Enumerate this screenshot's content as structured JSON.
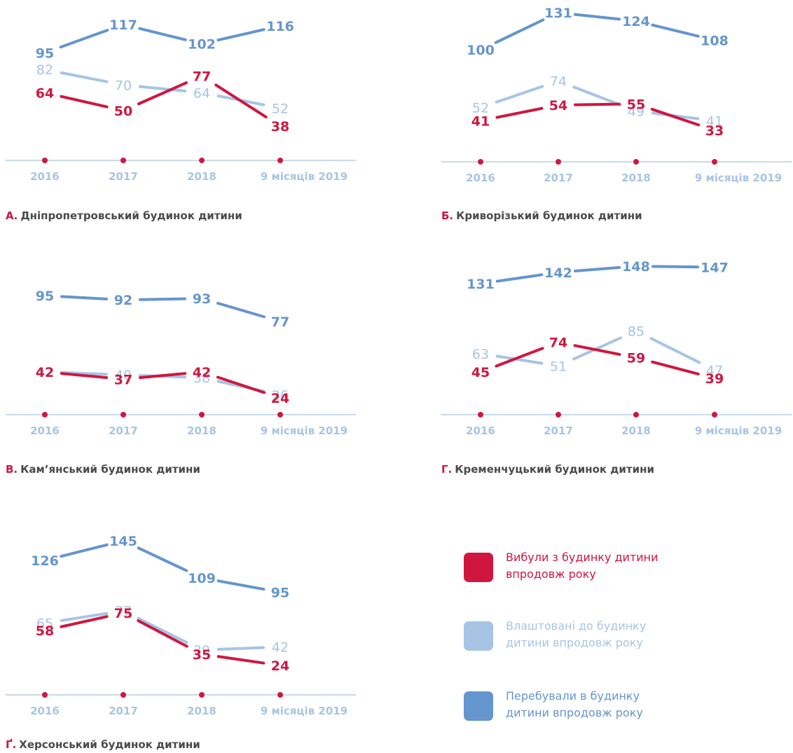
{
  "colors": {
    "left": "#d0163f",
    "placed": "#a7c4e5",
    "stayed": "#6495cd",
    "axis": "#a7c4e5",
    "axis_text": "#a7c4e5",
    "caption_text": "#4a4a4a",
    "caption_letter": "#d0163f"
  },
  "legend": [
    {
      "key": "left",
      "label": "Вибули з будинку дитини впродовж року",
      "color": "#d0163f"
    },
    {
      "key": "placed",
      "label": "Влаштовані до будинку дитини впродовж року",
      "color": "#a7c4e5"
    },
    {
      "key": "stayed",
      "label": "Перебували в будинку дитини впродовж року",
      "color": "#6495cd"
    }
  ],
  "chart_data": [
    {
      "type": "line",
      "letter": "А.",
      "title": "Дніпропетровський будинок дитини",
      "categories": [
        "2016",
        "2017",
        "2018",
        "9 місяців 2019"
      ],
      "series": [
        {
          "name": "Перебували в будинку дитини впродовж року",
          "key": "stayed",
          "values": [
            95,
            117,
            102,
            116
          ]
        },
        {
          "name": "Влаштовані до будинку дитини впродовж року",
          "key": "placed",
          "values": [
            82,
            70,
            64,
            52
          ]
        },
        {
          "name": "Вибули з будинку дитини впродовж року",
          "key": "left",
          "values": [
            64,
            50,
            77,
            38
          ]
        }
      ]
    },
    {
      "type": "line",
      "letter": "Б.",
      "title": "Криворізький будинок дитини",
      "categories": [
        "2016",
        "2017",
        "2018",
        "9 місяців 2019"
      ],
      "series": [
        {
          "name": "Перебували в будинку дитини впродовж року",
          "key": "stayed",
          "values": [
            100,
            131,
            124,
            108
          ]
        },
        {
          "name": "Влаштовані до будинку дитини впродовж року",
          "key": "placed",
          "values": [
            52,
            74,
            49,
            41
          ]
        },
        {
          "name": "Вибули з будинку дитини впродовж року",
          "key": "left",
          "values": [
            41,
            54,
            55,
            33
          ]
        }
      ]
    },
    {
      "type": "line",
      "letter": "В.",
      "title": "Кам’янський будинок дитини",
      "categories": [
        "2016",
        "2017",
        "2018",
        "9 місяців 2019"
      ],
      "series": [
        {
          "name": "Перебували в будинку дитини впродовж року",
          "key": "stayed",
          "values": [
            95,
            92,
            93,
            77
          ]
        },
        {
          "name": "Влаштовані до будинку дитини впродовж року",
          "key": "placed",
          "values": [
            42,
            40,
            38,
            26
          ]
        },
        {
          "name": "Вибули з будинку дитини впродовж року",
          "key": "left",
          "values": [
            42,
            37,
            42,
            24
          ]
        }
      ]
    },
    {
      "type": "line",
      "letter": "Г.",
      "title": "Кременчуцький будинок дитини",
      "categories": [
        "2016",
        "2017",
        "2018",
        "9 місяців 2019"
      ],
      "series": [
        {
          "name": "Перебували в будинку дитини впродовж року",
          "key": "stayed",
          "values": [
            131,
            142,
            148,
            147
          ]
        },
        {
          "name": "Влаштовані до будинку дитини впродовж року",
          "key": "placed",
          "values": [
            63,
            51,
            85,
            47
          ]
        },
        {
          "name": "Вибули з будинку дитини впродовж року",
          "key": "left",
          "values": [
            45,
            74,
            59,
            39
          ]
        }
      ]
    },
    {
      "type": "line",
      "letter": "Ґ.",
      "title": "Херсонський будинок дитини",
      "categories": [
        "2016",
        "2017",
        "2018",
        "9 місяців 2019"
      ],
      "series": [
        {
          "name": "Перебували в будинку дитини впродовж року",
          "key": "stayed",
          "values": [
            126,
            145,
            109,
            95
          ]
        },
        {
          "name": "Влаштовані до будинку дитини впродовж року",
          "key": "placed",
          "values": [
            65,
            77,
            39,
            42
          ]
        },
        {
          "name": "Вибули з будинку дитини впродовж року",
          "key": "left",
          "values": [
            58,
            75,
            35,
            24
          ]
        }
      ]
    }
  ]
}
